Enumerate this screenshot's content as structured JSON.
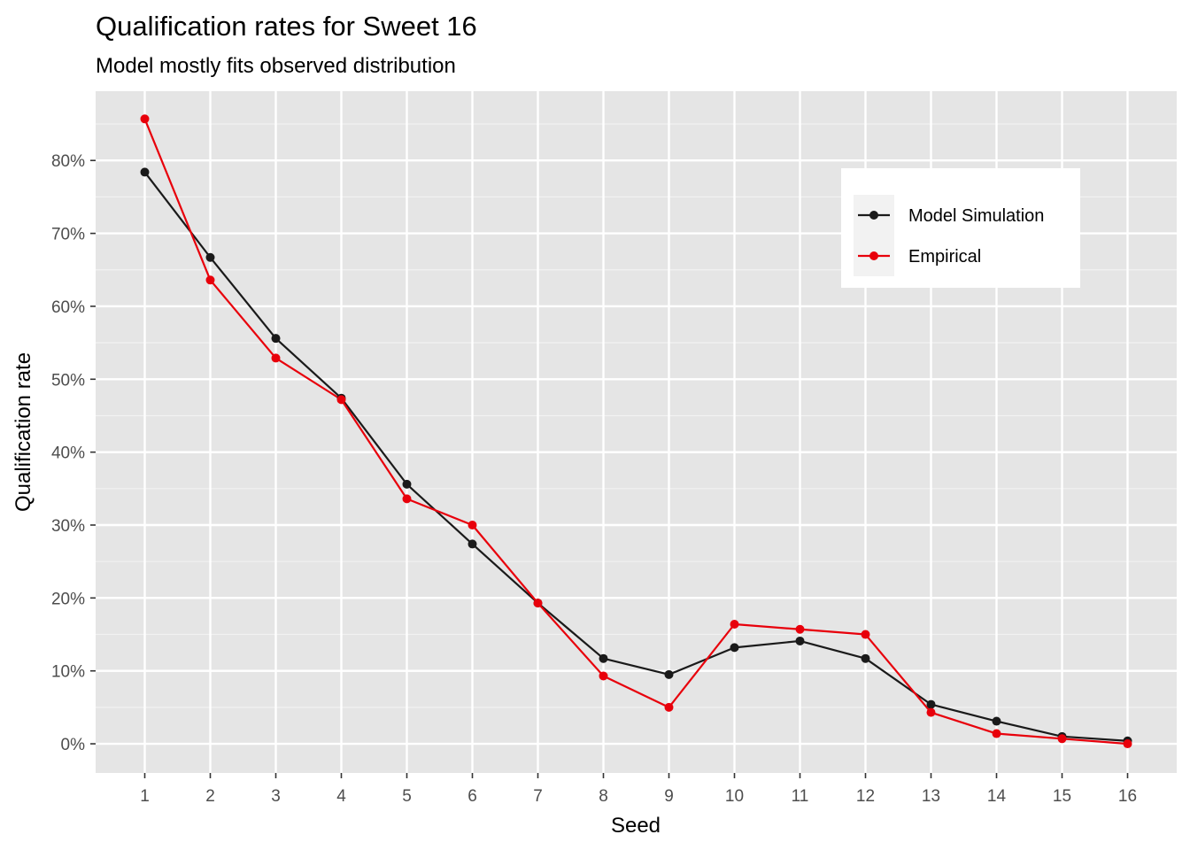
{
  "chart_data": {
    "type": "line",
    "title": "Qualification rates for Sweet 16",
    "subtitle": "Model mostly fits observed distribution",
    "xlabel": "Seed",
    "ylabel": "Qualification rate",
    "x": [
      1,
      2,
      3,
      4,
      5,
      6,
      7,
      8,
      9,
      10,
      11,
      12,
      13,
      14,
      15,
      16
    ],
    "x_tick_labels": [
      "1",
      "2",
      "3",
      "4",
      "5",
      "6",
      "7",
      "8",
      "9",
      "10",
      "11",
      "12",
      "13",
      "14",
      "15",
      "16"
    ],
    "y_ticks": [
      0,
      10,
      20,
      30,
      40,
      50,
      60,
      70,
      80
    ],
    "y_tick_labels": [
      "0%",
      "10%",
      "20%",
      "30%",
      "40%",
      "50%",
      "60%",
      "70%",
      "80%"
    ],
    "xlim": [
      0.25,
      16.75
    ],
    "ylim": [
      -4,
      89.5
    ],
    "grid": true,
    "legend_position": "top-right",
    "series": [
      {
        "name": "Model Simulation",
        "color": "#1a1a1a",
        "values": [
          78.4,
          66.7,
          55.6,
          47.4,
          35.6,
          27.4,
          19.3,
          11.7,
          9.5,
          13.2,
          14.1,
          11.7,
          5.4,
          3.1,
          1.0,
          0.4
        ]
      },
      {
        "name": "Empirical",
        "color": "#e8000b",
        "values": [
          85.7,
          63.6,
          52.9,
          47.2,
          33.6,
          30.0,
          19.3,
          9.3,
          5.0,
          16.4,
          15.7,
          15.0,
          4.3,
          1.4,
          0.7,
          0.0
        ]
      }
    ]
  }
}
